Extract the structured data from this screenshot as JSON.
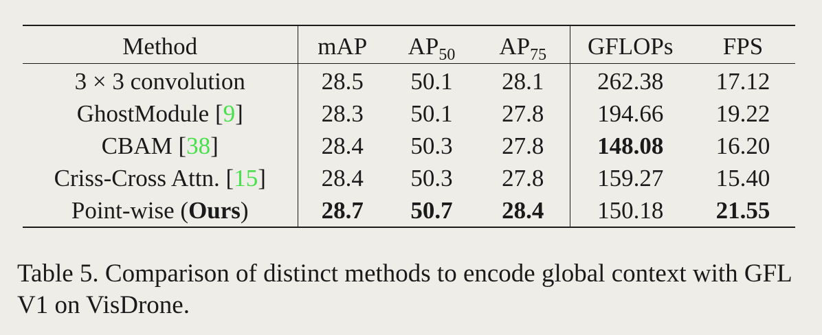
{
  "table": {
    "headers": {
      "method": "Method",
      "map": "mAP",
      "ap50_base": "AP",
      "ap50_sub": "50",
      "ap75_base": "AP",
      "ap75_sub": "75",
      "gflops": "GFLOPs",
      "fps": "FPS"
    },
    "rows": [
      {
        "method": "3 × 3 convolution",
        "cite": "",
        "map": "28.5",
        "ap50": "50.1",
        "ap75": "28.1",
        "gflops": "262.38",
        "fps": "17.12"
      },
      {
        "method": "GhostModule [",
        "cite": "9",
        "method_close": "]",
        "map": "28.3",
        "ap50": "50.1",
        "ap75": "27.8",
        "gflops": "194.66",
        "fps": "19.22"
      },
      {
        "method": "CBAM [",
        "cite": "38",
        "method_close": "]",
        "map": "28.4",
        "ap50": "50.3",
        "ap75": "27.8",
        "gflops": "148.08",
        "fps": "16.20"
      },
      {
        "method": "Criss-Cross Attn. [",
        "cite": "15",
        "method_close": "]",
        "map": "28.4",
        "ap50": "50.3",
        "ap75": "27.8",
        "gflops": "159.27",
        "fps": "15.40"
      },
      {
        "method": "Point-wise (",
        "method_bold": "Ours",
        "method_close": ")",
        "map": "28.7",
        "ap50": "50.7",
        "ap75": "28.4",
        "gflops": "150.18",
        "fps": "21.55"
      }
    ]
  },
  "caption": "Table 5. Comparison of distinct methods to encode global context with GFL V1 on VisDrone.",
  "colors": {
    "background": "#efede8",
    "text": "#1a1a1a",
    "citation": "#47e04a"
  }
}
